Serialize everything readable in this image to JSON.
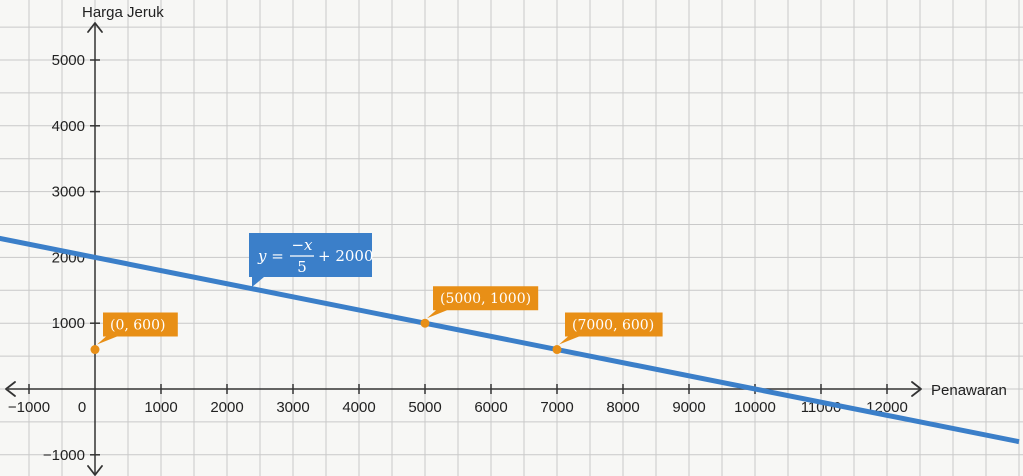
{
  "chart_data": {
    "type": "line",
    "x_axis_label": "Penawaran",
    "y_axis_label": "Harga Jeruk",
    "xlim": [
      -1450,
      12900
    ],
    "ylim": [
      -1240,
      5800
    ],
    "x_ticks": [
      -1000,
      0,
      1000,
      2000,
      3000,
      4000,
      5000,
      6000,
      7000,
      8000,
      9000,
      10000,
      11000,
      12000
    ],
    "x_tick_labels": [
      "−1000",
      "0",
      "1000",
      "2000",
      "3000",
      "4000",
      "5000",
      "6000",
      "7000",
      "8000",
      "9000",
      "10000",
      "11000",
      "12000"
    ],
    "y_ticks": [
      -1000,
      1000,
      2000,
      3000,
      4000,
      5000
    ],
    "y_tick_labels": [
      "−1000",
      "1000",
      "2000",
      "3000",
      "4000",
      "5000"
    ],
    "grid": true,
    "line": {
      "slope": -0.2,
      "intercept": 2000,
      "x_start": -1450,
      "x_end": 14000,
      "color": "#3b7fc9"
    },
    "equation": {
      "lhs": "y =",
      "numerator": "−x",
      "denominator": "5",
      "rhs": "+ 2000"
    },
    "points": [
      {
        "x": 0,
        "y": 600,
        "label": "(0, 600)"
      },
      {
        "x": 5000,
        "y": 1000,
        "label": "(5000, 1000)"
      },
      {
        "x": 7000,
        "y": 600,
        "label": "(7000, 600)"
      }
    ],
    "colors": {
      "grid": "#c9c9c9",
      "axis": "#333333",
      "point": "#e88f16",
      "callout": "#e88f16",
      "equation_box": "#3b7fc9"
    }
  }
}
